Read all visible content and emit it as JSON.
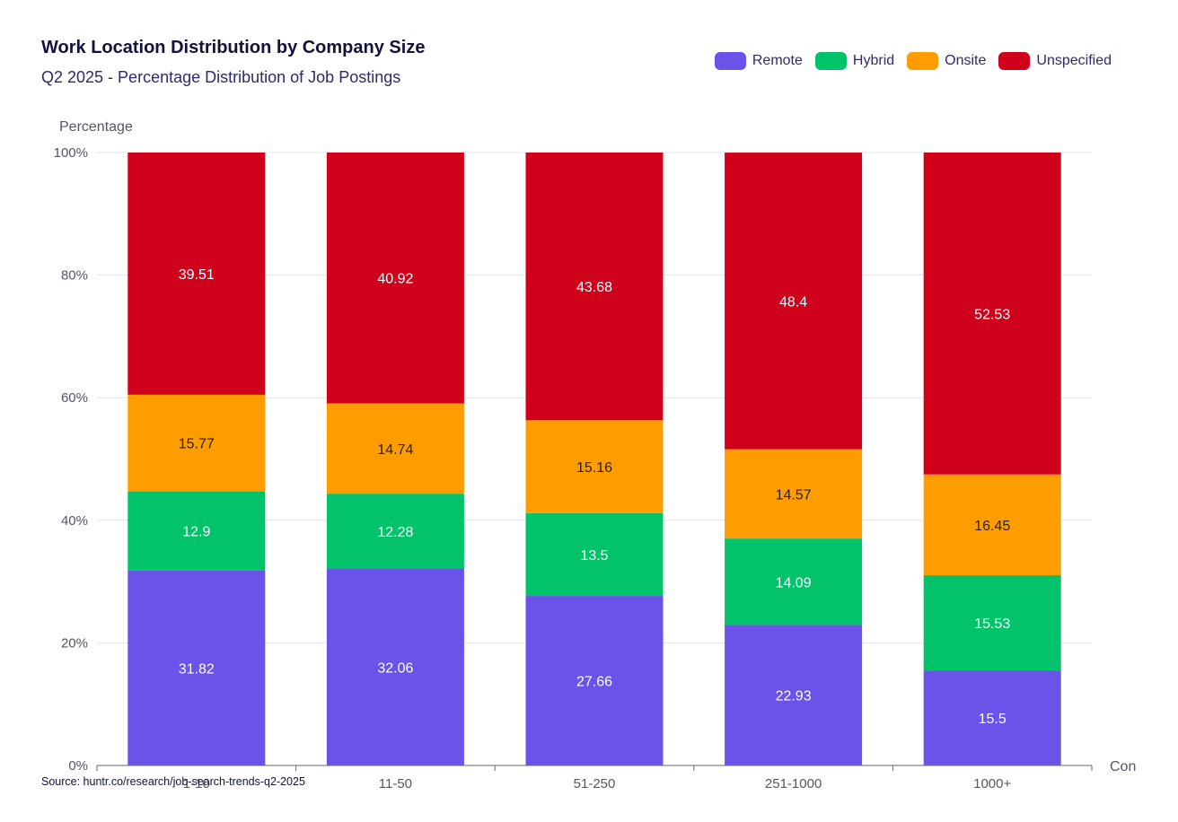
{
  "chart_data": {
    "type": "bar",
    "stacked": true,
    "title": "Work Location Distribution by Company Size",
    "subtitle": "Q2 2025 - Percentage Distribution of Job Postings",
    "ylabel": "Percentage",
    "xlabel": "Con",
    "ylim": [
      0,
      100
    ],
    "yticks": [
      "0%",
      "20%",
      "40%",
      "60%",
      "80%",
      "100%"
    ],
    "ytick_values": [
      0,
      20,
      40,
      60,
      80,
      100
    ],
    "categories": [
      "1-10",
      "11-50",
      "51-250",
      "251-1000",
      "1000+"
    ],
    "series": [
      {
        "name": "Remote",
        "color": "#6b52e8",
        "label_color": "#ffffff",
        "values": [
          31.82,
          32.06,
          27.66,
          22.93,
          15.5
        ]
      },
      {
        "name": "Hybrid",
        "color": "#02c26a",
        "label_color": "#ffffff",
        "values": [
          12.9,
          12.28,
          13.5,
          14.09,
          15.53
        ]
      },
      {
        "name": "Onsite",
        "color": "#ff9d00",
        "label_color": "#222222",
        "values": [
          15.77,
          14.74,
          15.16,
          14.57,
          16.45
        ]
      },
      {
        "name": "Unspecified",
        "color": "#d0021b",
        "label_color": "#ffffff",
        "values": [
          39.51,
          40.92,
          43.68,
          48.4,
          52.53
        ]
      }
    ],
    "legend_position": "top-right",
    "grid": true
  },
  "source": "Source: huntr.co/research/job-search-trends-q2-2025"
}
